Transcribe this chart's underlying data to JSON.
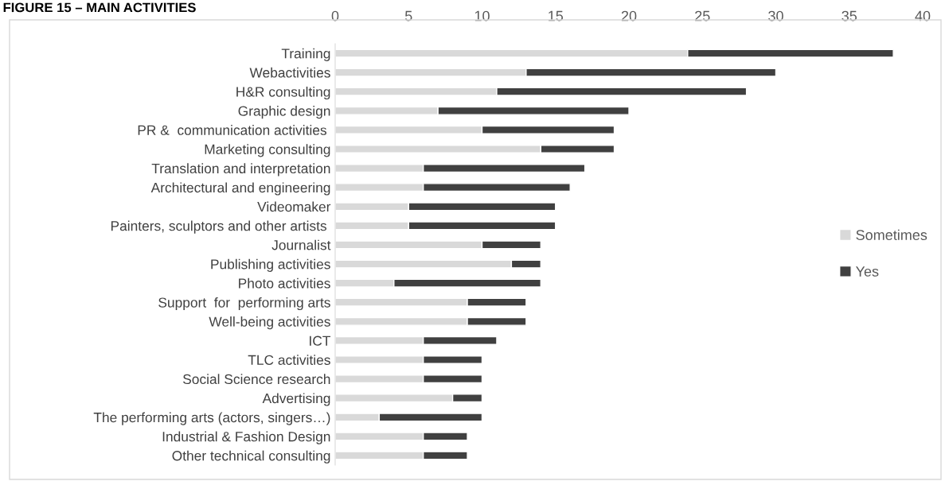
{
  "chart_data": {
    "type": "bar",
    "title": "FIGURE 15 – MAIN ACTIVITIES",
    "orientation": "horizontal",
    "stacked": true,
    "categories": [
      "Training",
      "Webactivities",
      "H&R consulting",
      "Graphic design",
      "PR &  communication activities ",
      "Marketing consulting",
      "Translation and interpretation",
      "Architectural and engineering",
      "Videomaker",
      "Painters, sculptors and other artists ",
      "Journalist",
      "Publishing activities",
      "Photo activities",
      "Support  for  performing arts",
      "Well-being activities",
      "ICT",
      "TLC activities",
      "Social Science research",
      "Advertising",
      "The performing arts (actors, singers…)",
      "Industrial & Fashion Design",
      "Other technical consulting"
    ],
    "series": [
      {
        "name": "Sometimes",
        "color": "#d9d9d9",
        "values": [
          24,
          13,
          11,
          7,
          10,
          14,
          6,
          6,
          5,
          5,
          10,
          12,
          4,
          9,
          9,
          6,
          6,
          6,
          8,
          3,
          6,
          6
        ]
      },
      {
        "name": "Yes",
        "color": "#404040",
        "values": [
          14,
          17,
          17,
          13,
          9,
          5,
          11,
          10,
          10,
          10,
          4,
          2,
          10,
          4,
          4,
          5,
          4,
          4,
          2,
          7,
          3,
          3
        ]
      }
    ],
    "xlim": [
      0,
      40
    ],
    "xticks": [
      0,
      5,
      10,
      15,
      20,
      25,
      30,
      35,
      40
    ],
    "grid": false,
    "legend": "right"
  }
}
